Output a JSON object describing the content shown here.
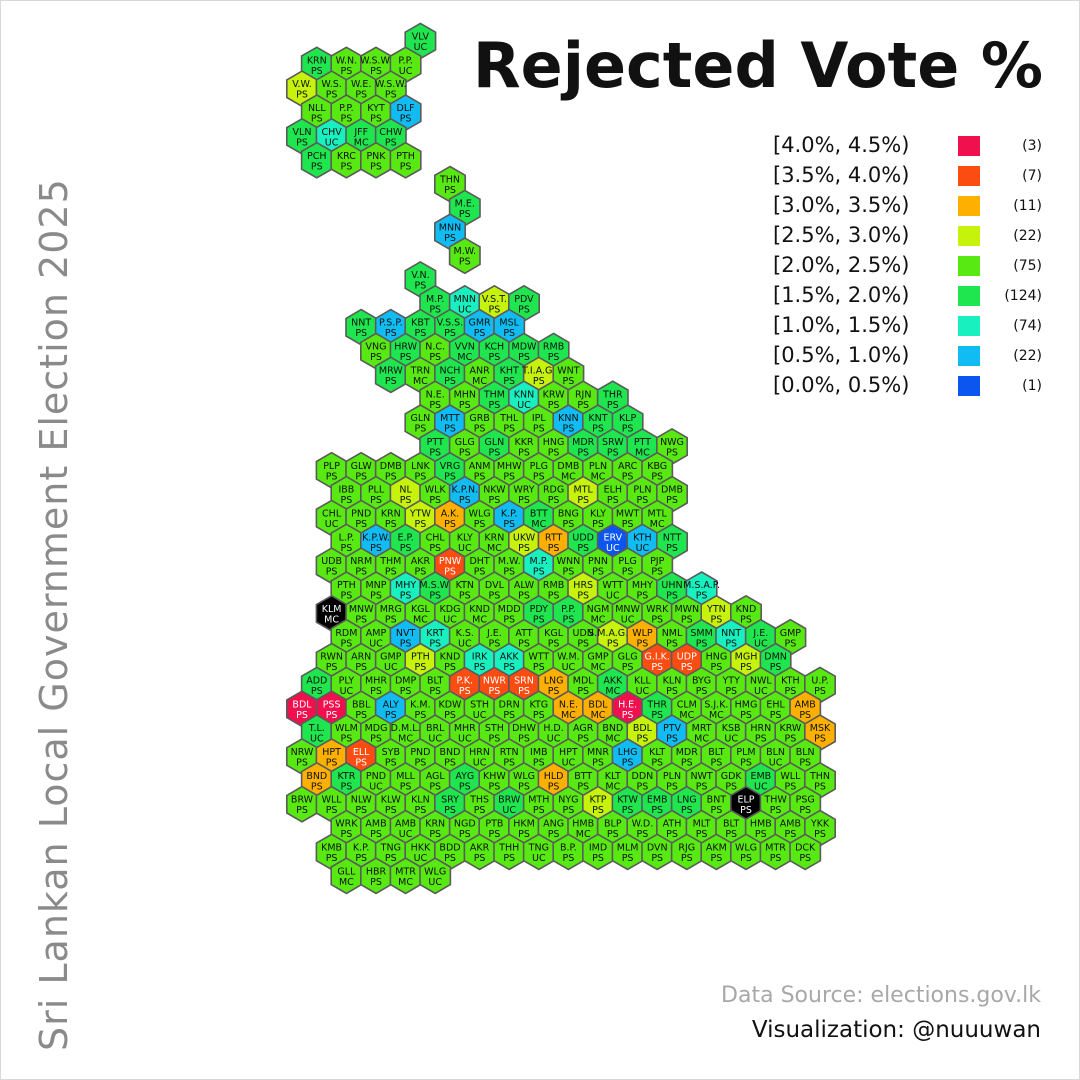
{
  "title": "Rejected Vote %",
  "side_title": "Sri Lankan Local Government Election 2025",
  "legend": {
    "items": [
      {
        "label": "[4.0%, 4.5%)",
        "count": "(3)",
        "color": "#f0104e"
      },
      {
        "label": "[3.5%, 4.0%)",
        "count": "(7)",
        "color": "#fb4d12"
      },
      {
        "label": "[3.0%, 3.5%)",
        "count": "(11)",
        "color": "#fdb000"
      },
      {
        "label": "[2.5%, 3.0%)",
        "count": "(22)",
        "color": "#c6f20c"
      },
      {
        "label": "[2.0%, 2.5%)",
        "count": "(75)",
        "color": "#58e812"
      },
      {
        "label": "[1.5%, 2.0%)",
        "count": "(124)",
        "color": "#1fe64e"
      },
      {
        "label": "[1.0%, 1.5%)",
        "count": "(74)",
        "color": "#18f0c0"
      },
      {
        "label": "[0.5%, 1.0%)",
        "count": "(22)",
        "color": "#10bcf2"
      },
      {
        "label": "[0.0%, 0.5%)",
        "count": "(1)",
        "color": "#0b55f0"
      }
    ]
  },
  "source": "Data Source: elections.gov.lk",
  "credit": "Visualization: @nuuuwan",
  "hexes": [
    [
      "VLV UC",
      "c5"
    ],
    [
      "KRN PS",
      "c5"
    ],
    [
      "W.N. PS",
      "c4"
    ],
    [
      "W.S.W. PS",
      "c4"
    ],
    [
      "P.P. UC",
      "c4"
    ],
    [
      "V.W. PS",
      "c3"
    ],
    [
      "W.S. PS",
      "c4"
    ],
    [
      "W.E. PS",
      "c4"
    ],
    [
      "W.S.W. PS",
      "c4"
    ],
    [
      "NLL PS",
      "c4"
    ],
    [
      "P.P. PS",
      "c4"
    ],
    [
      "KYT PS",
      "c4"
    ],
    [
      "DLF PS",
      "c7"
    ],
    [
      "VLN PS",
      "c5"
    ],
    [
      "CHV UC",
      "c6"
    ],
    [
      "JFF MC",
      "c5"
    ],
    [
      "CHW PS",
      "c5"
    ],
    [
      "PCH PS",
      "c5"
    ],
    [
      "KRC PS",
      "c4"
    ],
    [
      "PNK PS",
      "c4"
    ],
    [
      "PTH PS",
      "c4"
    ],
    [
      "THN PS",
      "c4"
    ],
    [
      "M.E. PS",
      "c5"
    ],
    [
      "MNN PS",
      "c7"
    ],
    [
      "M.W. PS",
      "c4"
    ],
    [
      "V.N. PS",
      "c5"
    ],
    [
      "M.P. PS",
      "c5"
    ],
    [
      "MNN UC",
      "c6"
    ],
    [
      "V.S.T. PS",
      "c3"
    ],
    [
      "PDV PS",
      "c5"
    ],
    [
      "NNT PS",
      "c5"
    ],
    [
      "P.S.P. PS",
      "c7"
    ],
    [
      "KBT PS",
      "c5"
    ],
    [
      "V.S.S. PS",
      "c5"
    ],
    [
      "GMR PS",
      "c7"
    ],
    [
      "MSL PS",
      "c7"
    ],
    [
      "VNG PS",
      "c4"
    ],
    [
      "HRW PS",
      "c5"
    ],
    [
      "N.C. PS",
      "c4"
    ],
    [
      "VVN MC",
      "c5"
    ],
    [
      "KCH PS",
      "c5"
    ],
    [
      "MDW PS",
      "c5"
    ],
    [
      "RMB PS",
      "c5"
    ],
    [
      "MRW PS",
      "c5"
    ],
    [
      "TRN MC",
      "c4"
    ],
    [
      "NCH PS",
      "c5"
    ],
    [
      "ANR MC",
      "c4"
    ],
    [
      "KHT PS",
      "c5"
    ],
    [
      "T.I.A.G. PS",
      "c3"
    ],
    [
      "WNT PS",
      "c4"
    ],
    [
      "N.E. PS",
      "c4"
    ],
    [
      "MHN PS",
      "c4"
    ],
    [
      "THM PS",
      "c5"
    ],
    [
      "KNN UC",
      "c6"
    ],
    [
      "KRW PS",
      "c4"
    ],
    [
      "RJN PS",
      "c4"
    ],
    [
      "THR PS",
      "c5"
    ],
    [
      "GLN PS",
      "c4"
    ],
    [
      "MTT PS",
      "c7"
    ],
    [
      "GRB PS",
      "c4"
    ],
    [
      "THL PS",
      "c4"
    ],
    [
      "IPL PS",
      "c4"
    ],
    [
      "KNN PS",
      "c7"
    ],
    [
      "KNT PS",
      "c5"
    ],
    [
      "KLP PS",
      "c5"
    ],
    [
      "PTT PS",
      "c5"
    ],
    [
      "GLG PS",
      "c4"
    ],
    [
      "GLN PS",
      "c5"
    ],
    [
      "KKR PS",
      "c4"
    ],
    [
      "HNG PS",
      "c4"
    ],
    [
      "MDR PS",
      "c5"
    ],
    [
      "SRW PS",
      "c5"
    ],
    [
      "PTT MC",
      "c5"
    ],
    [
      "NWG PS",
      "c4"
    ],
    [
      "PLP PS",
      "c4"
    ],
    [
      "GLW PS",
      "c4"
    ],
    [
      "DMB PS",
      "c4"
    ],
    [
      "LNK PS",
      "c4"
    ],
    [
      "VRG PS",
      "c5"
    ],
    [
      "ANM PS",
      "c4"
    ],
    [
      "MHW PS",
      "c4"
    ],
    [
      "PLG PS",
      "c4"
    ],
    [
      "DMB MC",
      "c4"
    ],
    [
      "PLN MC",
      "c4"
    ],
    [
      "ARC PS",
      "c4"
    ],
    [
      "KBG PS",
      "c4"
    ],
    [
      "IBB PS",
      "c4"
    ],
    [
      "PLL PS",
      "c4"
    ],
    [
      "NL PS",
      "c3"
    ],
    [
      "WLK PS",
      "c4"
    ],
    [
      "K.P.N. PS",
      "c7"
    ],
    [
      "NKW PS",
      "c4"
    ],
    [
      "WRY PS",
      "c4"
    ],
    [
      "RDG PS",
      "c4"
    ],
    [
      "MTL PS",
      "c3"
    ],
    [
      "ELH PS",
      "c4"
    ],
    [
      "PLN PS",
      "c4"
    ],
    [
      "DMB PS",
      "c4"
    ],
    [
      "CHL UC",
      "c4"
    ],
    [
      "PND PS",
      "c4"
    ],
    [
      "KRN PS",
      "c4"
    ],
    [
      "YTW PS",
      "c3"
    ],
    [
      "A.K. PS",
      "c2"
    ],
    [
      "WLG PS",
      "c4"
    ],
    [
      "K.P. PS",
      "c7"
    ],
    [
      "BTT MC",
      "c5"
    ],
    [
      "BNG PS",
      "c4"
    ],
    [
      "KLY PS",
      "c4"
    ],
    [
      "MWT PS",
      "c4"
    ],
    [
      "MTL MC",
      "c4"
    ],
    [
      "L.P. PS",
      "c4"
    ],
    [
      "K.P.W. PS",
      "c7"
    ],
    [
      "E.P. PS",
      "c5"
    ],
    [
      "CHL PS",
      "c4"
    ],
    [
      "KLY UC",
      "c4"
    ],
    [
      "KRN MC",
      "c4"
    ],
    [
      "UKW PS",
      "c3"
    ],
    [
      "RTT PS",
      "c2"
    ],
    [
      "UDD PS",
      "c5"
    ],
    [
      "ERV UC",
      "c8"
    ],
    [
      "KTH UC",
      "c7"
    ],
    [
      "NTT PS",
      "c5"
    ],
    [
      "UDB PS",
      "c4"
    ],
    [
      "NRM PS",
      "c4"
    ],
    [
      "THM PS",
      "c4"
    ],
    [
      "AKR PS",
      "c4"
    ],
    [
      "PNW PS",
      "c1"
    ],
    [
      "DHT PS",
      "c4"
    ],
    [
      "M.W. PS",
      "c4"
    ],
    [
      "M.P. PS",
      "c6"
    ],
    [
      "WNN PS",
      "c4"
    ],
    [
      "PNN PS",
      "c4"
    ],
    [
      "PLG PS",
      "c4"
    ],
    [
      "PJP PS",
      "c4"
    ],
    [
      "PTH PS",
      "c4"
    ],
    [
      "MNP PS",
      "c4"
    ],
    [
      "MHY PS",
      "c6"
    ],
    [
      "M.S.W. PS",
      "c5"
    ],
    [
      "KTN PS",
      "c4"
    ],
    [
      "DVL PS",
      "c4"
    ],
    [
      "ALW PS",
      "c4"
    ],
    [
      "RMB PS",
      "c4"
    ],
    [
      "HRS PS",
      "c3"
    ],
    [
      "WTT UC",
      "c4"
    ],
    [
      "MHY PS",
      "c4"
    ],
    [
      "UHN PS",
      "c5"
    ],
    [
      "M.S.A.P. PS",
      "c6"
    ],
    [
      "KLM MC",
      "c9"
    ],
    [
      "MNW PS",
      "c4"
    ],
    [
      "MRG PS",
      "c4"
    ],
    [
      "KGL MC",
      "c4"
    ],
    [
      "KDG UC",
      "c4"
    ],
    [
      "KND MC",
      "c4"
    ],
    [
      "MDD PS",
      "c4"
    ],
    [
      "PDY PS",
      "c5"
    ],
    [
      "P.P. PS",
      "c5"
    ],
    [
      "NGM MC",
      "c4"
    ],
    [
      "MNW UC",
      "c4"
    ],
    [
      "WRK PS",
      "c4"
    ],
    [
      "MWN PS",
      "c4"
    ],
    [
      "YTN PS",
      "c3"
    ],
    [
      "KND PS",
      "c4"
    ],
    [
      "RDM PS",
      "c4"
    ],
    [
      "AMP UC",
      "c4"
    ],
    [
      "NVT PS",
      "c7"
    ],
    [
      "KRT PS",
      "c6"
    ],
    [
      "K.S. UC",
      "c4"
    ],
    [
      "J.E. PS",
      "c4"
    ],
    [
      "ATT PS",
      "c4"
    ],
    [
      "KGL PS",
      "c4"
    ],
    [
      "UDN PS",
      "c4"
    ],
    [
      "S.M.A.G.K. PS",
      "c3"
    ],
    [
      "WLP PS",
      "c2"
    ],
    [
      "NML PS",
      "c4"
    ],
    [
      "SMM PS",
      "c5"
    ],
    [
      "NNT PS",
      "c6"
    ],
    [
      "J.E. UC",
      "c5"
    ],
    [
      "GMP PS",
      "c4"
    ],
    [
      "RWN PS",
      "c4"
    ],
    [
      "ARN PS",
      "c4"
    ],
    [
      "GMP UC",
      "c4"
    ],
    [
      "PTH PS",
      "c3"
    ],
    [
      "KND PS",
      "c4"
    ],
    [
      "IRK PS",
      "c6"
    ],
    [
      "AKK PS",
      "c6"
    ],
    [
      "WTT PS",
      "c4"
    ],
    [
      "W.M. UC",
      "c4"
    ],
    [
      "GMP MC",
      "c4"
    ],
    [
      "GLG PS",
      "c4"
    ],
    [
      "G.I.K. PS",
      "c1"
    ],
    [
      "UDP PS",
      "c1"
    ],
    [
      "HNG PS",
      "c4"
    ],
    [
      "MGH PS",
      "c3"
    ],
    [
      "DMN PS",
      "c5"
    ],
    [
      "ADD PS",
      "c5"
    ],
    [
      "PLY UC",
      "c4"
    ],
    [
      "MHR PS",
      "c4"
    ],
    [
      "DMP PS",
      "c4"
    ],
    [
      "BLT PS",
      "c4"
    ],
    [
      "P.K. PS",
      "c1"
    ],
    [
      "NWR PS",
      "c1"
    ],
    [
      "SRN PS",
      "c1"
    ],
    [
      "LNG PS",
      "c2"
    ],
    [
      "MDL PS",
      "c4"
    ],
    [
      "AKK MC",
      "c5"
    ],
    [
      "KLL UC",
      "c4"
    ],
    [
      "KLN PS",
      "c4"
    ],
    [
      "BYG PS",
      "c4"
    ],
    [
      "YTY PS",
      "c4"
    ],
    [
      "NWL UC",
      "c4"
    ],
    [
      "KTH PS",
      "c4"
    ],
    [
      "U.P. PS",
      "c4"
    ],
    [
      "BDL PS",
      "c0"
    ],
    [
      "PSS PS",
      "c0"
    ],
    [
      "BBL PS",
      "c4"
    ],
    [
      "ALY PS",
      "c7"
    ],
    [
      "K.M. PS",
      "c4"
    ],
    [
      "KDW PS",
      "c4"
    ],
    [
      "STH UC",
      "c4"
    ],
    [
      "DRN PS",
      "c4"
    ],
    [
      "KTG PS",
      "c4"
    ],
    [
      "N.E. MC",
      "c2"
    ],
    [
      "BDL MC",
      "c2"
    ],
    [
      "H.E. PS",
      "c0"
    ],
    [
      "THR PS",
      "c5"
    ],
    [
      "CLM MC",
      "c4"
    ],
    [
      "S.J.K. MC",
      "c4"
    ],
    [
      "HMG PS",
      "c4"
    ],
    [
      "EHL PS",
      "c4"
    ],
    [
      "AMB PS",
      "c2"
    ],
    [
      "T.L. UC",
      "c5"
    ],
    [
      "WLM PS",
      "c4"
    ],
    [
      "MDG PS",
      "c4"
    ],
    [
      "D.M.L. MC",
      "c4"
    ],
    [
      "BRL UC",
      "c4"
    ],
    [
      "MHR UC",
      "c4"
    ],
    [
      "STH PS",
      "c4"
    ],
    [
      "DHW PS",
      "c4"
    ],
    [
      "H.D. UC",
      "c4"
    ],
    [
      "AGR PS",
      "c4"
    ],
    [
      "BND MC",
      "c4"
    ],
    [
      "BDL PS",
      "c3"
    ],
    [
      "PTV PS",
      "c7"
    ],
    [
      "MRT MC",
      "c4"
    ],
    [
      "KSB UC",
      "c4"
    ],
    [
      "HRN PS",
      "c4"
    ],
    [
      "KRW PS",
      "c4"
    ],
    [
      "MSK PS",
      "c2"
    ],
    [
      "NRW PS",
      "c4"
    ],
    [
      "HPT PS",
      "c2"
    ],
    [
      "ELL PS",
      "c1"
    ],
    [
      "SYB PS",
      "c4"
    ],
    [
      "PND PS",
      "c4"
    ],
    [
      "BND PS",
      "c4"
    ],
    [
      "HRN UC",
      "c4"
    ],
    [
      "RTN PS",
      "c4"
    ],
    [
      "IMB PS",
      "c4"
    ],
    [
      "HPT UC",
      "c4"
    ],
    [
      "MNR PS",
      "c4"
    ],
    [
      "LHG PS",
      "c7"
    ],
    [
      "KLT PS",
      "c4"
    ],
    [
      "MDR PS",
      "c4"
    ],
    [
      "BLT PS",
      "c4"
    ],
    [
      "PLM PS",
      "c4"
    ],
    [
      "BLN UC",
      "c4"
    ],
    [
      "BLN PS",
      "c4"
    ],
    [
      "BND PS",
      "c2"
    ],
    [
      "KTR PS",
      "c5"
    ],
    [
      "PND UC",
      "c4"
    ],
    [
      "MLL PS",
      "c4"
    ],
    [
      "AGL PS",
      "c4"
    ],
    [
      "AYG PS",
      "c5"
    ],
    [
      "KHW PS",
      "c4"
    ],
    [
      "WLG PS",
      "c4"
    ],
    [
      "HLD PS",
      "c2"
    ],
    [
      "BTT PS",
      "c4"
    ],
    [
      "KLT MC",
      "c4"
    ],
    [
      "DDN PS",
      "c4"
    ],
    [
      "PLN PS",
      "c4"
    ],
    [
      "NWT PS",
      "c4"
    ],
    [
      "GDK PS",
      "c4"
    ],
    [
      "EMB UC",
      "c5"
    ],
    [
      "WLL PS",
      "c4"
    ],
    [
      "THN PS",
      "c4"
    ],
    [
      "BRW PS",
      "c4"
    ],
    [
      "WLL PS",
      "c4"
    ],
    [
      "NLW PS",
      "c4"
    ],
    [
      "KLW PS",
      "c4"
    ],
    [
      "KLN PS",
      "c4"
    ],
    [
      "SRY PS",
      "c5"
    ],
    [
      "THS PS",
      "c4"
    ],
    [
      "BRW UC",
      "c5"
    ],
    [
      "MTH PS",
      "c4"
    ],
    [
      "NYG PS",
      "c4"
    ],
    [
      "KTP PS",
      "c3"
    ],
    [
      "KTW PS",
      "c5"
    ],
    [
      "EMB PS",
      "c5"
    ],
    [
      "LNG PS",
      "c5"
    ],
    [
      "BNT PS",
      "c4"
    ],
    [
      "ELP PS",
      "c9"
    ],
    [
      "THW PS",
      "c4"
    ],
    [
      "PSG PS",
      "c4"
    ],
    [
      "WRK PS",
      "c4"
    ],
    [
      "AMB PS",
      "c4"
    ],
    [
      "AMB UC",
      "c4"
    ],
    [
      "KRN PS",
      "c4"
    ],
    [
      "NGD PS",
      "c4"
    ],
    [
      "PTB PS",
      "c4"
    ],
    [
      "HKM PS",
      "c4"
    ],
    [
      "ANG PS",
      "c4"
    ],
    [
      "HMB MC",
      "c4"
    ],
    [
      "BLP PS",
      "c4"
    ],
    [
      "W.D. PS",
      "c4"
    ],
    [
      "ATH PS",
      "c4"
    ],
    [
      "MLT PS",
      "c4"
    ],
    [
      "BLT PS",
      "c4"
    ],
    [
      "HMB PS",
      "c4"
    ],
    [
      "AMB PS",
      "c4"
    ],
    [
      "YKK PS",
      "c4"
    ],
    [
      "KMB PS",
      "c4"
    ],
    [
      "K.P. PS",
      "c4"
    ],
    [
      "TNG PS",
      "c4"
    ],
    [
      "HKK UC",
      "c4"
    ],
    [
      "BDD PS",
      "c4"
    ],
    [
      "AKR PS",
      "c4"
    ],
    [
      "THH PS",
      "c4"
    ],
    [
      "TNG UC",
      "c4"
    ],
    [
      "B.P. PS",
      "c4"
    ],
    [
      "IMD PS",
      "c4"
    ],
    [
      "MLM PS",
      "c4"
    ],
    [
      "DVN PS",
      "c4"
    ],
    [
      "RJG PS",
      "c4"
    ],
    [
      "AKM PS",
      "c4"
    ],
    [
      "WLG PS",
      "c4"
    ],
    [
      "MTR PS",
      "c4"
    ],
    [
      "DCK PS",
      "c4"
    ],
    [
      "GLL MC",
      "c4"
    ],
    [
      "HBR PS",
      "c4"
    ],
    [
      "MTR MC",
      "c4"
    ],
    [
      "WLG UC",
      "c4"
    ]
  ]
}
